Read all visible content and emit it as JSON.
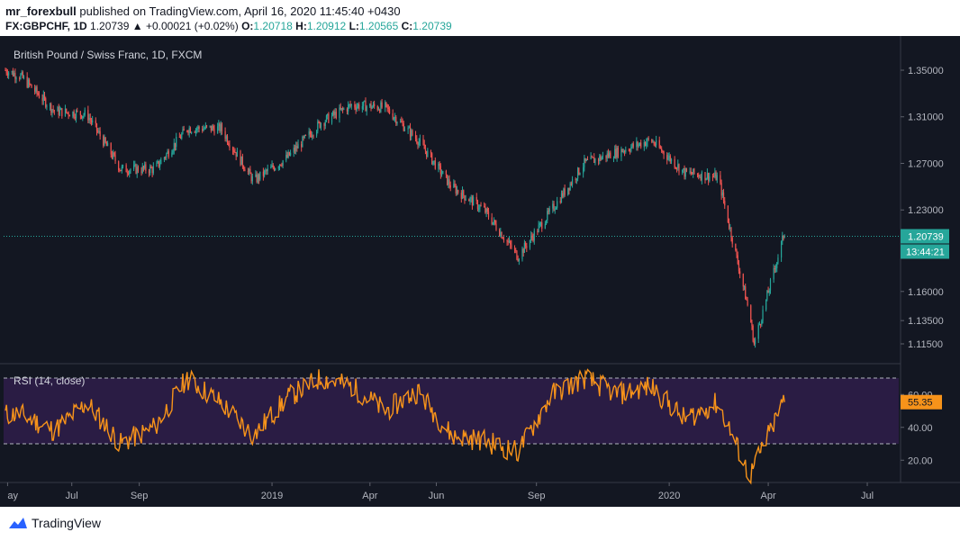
{
  "header": {
    "author": "mr_forexbull",
    "published_text": "published on TradingView.com, April 16, 2020 11:45:40 +0430",
    "symbol": "FX:GBPCHF, 1D",
    "last": "1.20739",
    "change": "▲ +0.00021 (+0.02%)",
    "o_label": "O:",
    "o_value": "1.20718",
    "h_label": "H:",
    "h_value": "1.20912",
    "l_label": "L:",
    "l_value": "1.20565",
    "c_label": "C:",
    "c_value": "1.20739"
  },
  "colors": {
    "background": "#131722",
    "up": "#26a69a",
    "down": "#ef5350",
    "rsi_line": "#f7931a",
    "rsi_band": "#2a1c44",
    "price_tag": "#26a69a"
  },
  "footer": {
    "brand": "TradingView",
    "logo_icon": "tradingview-cloud-icon"
  },
  "chart_data": [
    {
      "type": "candlestick",
      "title": "British Pound / Swiss Franc, 1D, FXCM",
      "y_ticks": [
        "1.35000",
        "1.31000",
        "1.27000",
        "1.23000",
        "1.16000",
        "1.13500",
        "1.11500"
      ],
      "last_price_label": "1.20739",
      "countdown_label": "13:44:21",
      "last_price": 1.20739,
      "x_tick_labels": [
        "ay",
        "Jul",
        "Sep",
        "2019",
        "Apr",
        "Jun",
        "Sep",
        "2020",
        "Apr",
        "Jul"
      ],
      "close_series_approx": [
        {
          "date": "2018-05",
          "close": 1.345
        },
        {
          "date": "2018-06",
          "close": 1.315
        },
        {
          "date": "2018-07",
          "close": 1.312
        },
        {
          "date": "2018-08",
          "close": 1.265
        },
        {
          "date": "2018-09",
          "close": 1.265
        },
        {
          "date": "2018-10",
          "close": 1.3
        },
        {
          "date": "2018-11",
          "close": 1.3
        },
        {
          "date": "2018-12",
          "close": 1.255
        },
        {
          "date": "2019-01",
          "close": 1.275
        },
        {
          "date": "2019-02",
          "close": 1.305
        },
        {
          "date": "2019-03",
          "close": 1.32
        },
        {
          "date": "2019-04",
          "close": 1.318
        },
        {
          "date": "2019-05",
          "close": 1.29
        },
        {
          "date": "2019-06",
          "close": 1.25
        },
        {
          "date": "2019-07",
          "close": 1.23
        },
        {
          "date": "2019-08",
          "close": 1.19
        },
        {
          "date": "2019-09",
          "close": 1.23
        },
        {
          "date": "2019-10",
          "close": 1.27
        },
        {
          "date": "2019-11",
          "close": 1.28
        },
        {
          "date": "2019-12",
          "close": 1.29
        },
        {
          "date": "2020-01",
          "close": 1.262
        },
        {
          "date": "2020-02",
          "close": 1.258
        },
        {
          "date": "2020-03",
          "close": 1.14
        },
        {
          "date": "2020-04",
          "close": 1.2074
        }
      ],
      "extremes": [
        {
          "label": "low",
          "date": "2020-03-19",
          "value": 1.115
        },
        {
          "label": "high",
          "date": "2018-05-01",
          "value": 1.35
        }
      ]
    },
    {
      "type": "line",
      "title": "RSI (14, close)",
      "y_ticks": [
        "60.00",
        "40.00",
        "20.00"
      ],
      "last_value_label": "55.35",
      "band": [
        30,
        70
      ],
      "series_approx": [
        {
          "date": "2018-05",
          "rsi": 48
        },
        {
          "date": "2018-06",
          "rsi": 38
        },
        {
          "date": "2018-07",
          "rsi": 55
        },
        {
          "date": "2018-08",
          "rsi": 30
        },
        {
          "date": "2018-09",
          "rsi": 40
        },
        {
          "date": "2018-10",
          "rsi": 70
        },
        {
          "date": "2018-11",
          "rsi": 55
        },
        {
          "date": "2018-12",
          "rsi": 35
        },
        {
          "date": "2019-01",
          "rsi": 58
        },
        {
          "date": "2019-02",
          "rsi": 70
        },
        {
          "date": "2019-03",
          "rsi": 65
        },
        {
          "date": "2019-04",
          "rsi": 50
        },
        {
          "date": "2019-05",
          "rsi": 62
        },
        {
          "date": "2019-06",
          "rsi": 35
        },
        {
          "date": "2019-07",
          "rsi": 32
        },
        {
          "date": "2019-08",
          "rsi": 25
        },
        {
          "date": "2019-09",
          "rsi": 60
        },
        {
          "date": "2019-10",
          "rsi": 70
        },
        {
          "date": "2019-11",
          "rsi": 60
        },
        {
          "date": "2019-12",
          "rsi": 65
        },
        {
          "date": "2020-01",
          "rsi": 45
        },
        {
          "date": "2020-02",
          "rsi": 55
        },
        {
          "date": "2020-03",
          "rsi": 10
        },
        {
          "date": "2020-04",
          "rsi": 55.35
        }
      ]
    }
  ]
}
